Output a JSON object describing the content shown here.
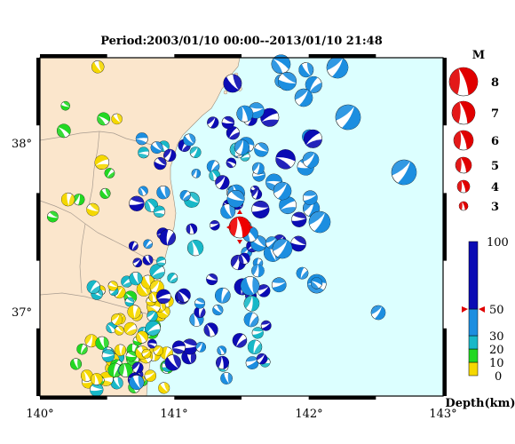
{
  "title": "Period:2003/01/10 00:00--2013/01/10 21:48",
  "map": {
    "lon_range": [
      140,
      143
    ],
    "lat_range": [
      36.5,
      38.5
    ],
    "x_ticks": [
      "140°",
      "141°",
      "142°",
      "143°"
    ],
    "y_ticks": [
      "38°",
      "37°"
    ],
    "land_color": "#fbe6cc",
    "sea_color": "#dcffff"
  },
  "magnitude_legend": {
    "header": "M",
    "items": [
      "8",
      "7",
      "6",
      "5",
      "4",
      "3"
    ]
  },
  "depth_scale": {
    "ticks": [
      "100",
      "50",
      "30",
      "20",
      "10",
      "0"
    ],
    "unit_label": "Depth(km)",
    "marker_value": 50,
    "colors": [
      {
        "range": "0-10",
        "color": "#f5d800"
      },
      {
        "range": "10-20",
        "color": "#22d822"
      },
      {
        "range": "20-30",
        "color": "#18b8c8"
      },
      {
        "range": "30-50",
        "color": "#1c8ee0"
      },
      {
        "range": "50-100",
        "color": "#0b0bb4"
      }
    ]
  },
  "highlight_event": {
    "lon": 141.45,
    "lat": 37.52,
    "color": "#ee0000"
  }
}
